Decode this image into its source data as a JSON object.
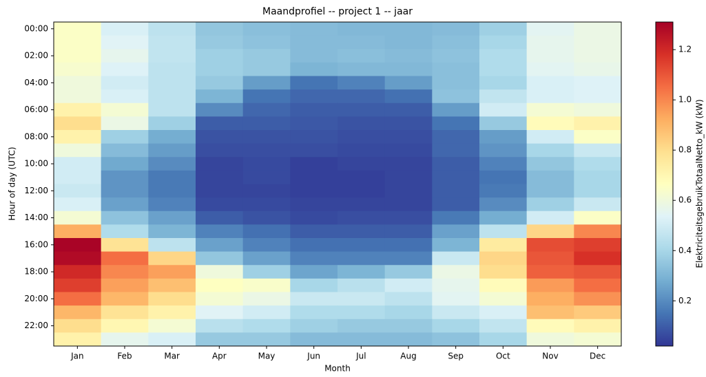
{
  "chart_data": {
    "type": "heatmap",
    "title": "Maandprofiel -- project 1 -- jaar",
    "x_label": "Month",
    "y_label": "Hour of day (UTC)",
    "colorbar_label": "ElektriciteitsgebruikTotaalNetto_kW (kW)",
    "x_categories": [
      "Jan",
      "Feb",
      "Mar",
      "Apr",
      "May",
      "Jun",
      "Jul",
      "Aug",
      "Sep",
      "Oct",
      "Nov",
      "Dec"
    ],
    "y_categories": [
      "00:00",
      null,
      "02:00",
      null,
      "04:00",
      null,
      "06:00",
      null,
      "08:00",
      null,
      "10:00",
      null,
      "12:00",
      null,
      "14:00",
      null,
      "16:00",
      null,
      "18:00",
      null,
      "20:00",
      null,
      "22:00",
      null
    ],
    "values": [
      [
        0.65,
        0.52,
        0.45,
        0.35,
        0.33,
        0.32,
        0.31,
        0.31,
        0.32,
        0.38,
        0.55,
        0.58
      ],
      [
        0.65,
        0.54,
        0.46,
        0.36,
        0.34,
        0.32,
        0.32,
        0.31,
        0.33,
        0.4,
        0.56,
        0.58
      ],
      [
        0.65,
        0.56,
        0.46,
        0.38,
        0.36,
        0.32,
        0.33,
        0.32,
        0.34,
        0.42,
        0.56,
        0.58
      ],
      [
        0.63,
        0.53,
        0.45,
        0.38,
        0.36,
        0.3,
        0.31,
        0.31,
        0.33,
        0.42,
        0.55,
        0.57
      ],
      [
        0.6,
        0.5,
        0.45,
        0.36,
        0.24,
        0.15,
        0.18,
        0.24,
        0.33,
        0.4,
        0.52,
        0.53
      ],
      [
        0.6,
        0.52,
        0.45,
        0.3,
        0.15,
        0.12,
        0.12,
        0.14,
        0.34,
        0.46,
        0.52,
        0.53
      ],
      [
        0.72,
        0.62,
        0.45,
        0.2,
        0.12,
        0.1,
        0.1,
        0.1,
        0.24,
        0.5,
        0.62,
        0.6
      ],
      [
        0.8,
        0.58,
        0.38,
        0.1,
        0.1,
        0.09,
        0.08,
        0.08,
        0.15,
        0.36,
        0.68,
        0.72
      ],
      [
        0.72,
        0.38,
        0.28,
        0.08,
        0.08,
        0.08,
        0.07,
        0.07,
        0.12,
        0.24,
        0.5,
        0.65
      ],
      [
        0.6,
        0.32,
        0.24,
        0.07,
        0.07,
        0.07,
        0.06,
        0.06,
        0.12,
        0.22,
        0.4,
        0.48
      ],
      [
        0.5,
        0.27,
        0.2,
        0.05,
        0.06,
        0.04,
        0.05,
        0.05,
        0.1,
        0.18,
        0.35,
        0.42
      ],
      [
        0.5,
        0.22,
        0.16,
        0.05,
        0.06,
        0.04,
        0.04,
        0.05,
        0.1,
        0.15,
        0.32,
        0.4
      ],
      [
        0.48,
        0.22,
        0.16,
        0.05,
        0.05,
        0.04,
        0.04,
        0.05,
        0.1,
        0.16,
        0.32,
        0.4
      ],
      [
        0.52,
        0.25,
        0.18,
        0.06,
        0.06,
        0.05,
        0.05,
        0.05,
        0.1,
        0.2,
        0.38,
        0.48
      ],
      [
        0.62,
        0.34,
        0.25,
        0.1,
        0.08,
        0.06,
        0.07,
        0.07,
        0.16,
        0.28,
        0.5,
        0.65
      ],
      [
        0.92,
        0.42,
        0.3,
        0.18,
        0.14,
        0.1,
        0.1,
        0.1,
        0.25,
        0.45,
        0.82,
        1.0
      ],
      [
        1.3,
        0.78,
        0.45,
        0.25,
        0.18,
        0.14,
        0.14,
        0.14,
        0.3,
        0.75,
        1.12,
        1.15
      ],
      [
        1.28,
        1.05,
        0.82,
        0.35,
        0.25,
        0.18,
        0.18,
        0.18,
        0.48,
        0.82,
        1.1,
        1.18
      ],
      [
        1.2,
        1.0,
        0.95,
        0.6,
        0.38,
        0.26,
        0.3,
        0.36,
        0.58,
        0.8,
        1.08,
        1.1
      ],
      [
        1.15,
        0.95,
        0.88,
        0.66,
        0.64,
        0.4,
        0.44,
        0.5,
        0.56,
        0.68,
        0.96,
        1.05
      ],
      [
        1.05,
        0.9,
        0.8,
        0.62,
        0.58,
        0.48,
        0.48,
        0.45,
        0.55,
        0.62,
        0.92,
        0.98
      ],
      [
        0.9,
        0.78,
        0.72,
        0.54,
        0.5,
        0.42,
        0.42,
        0.4,
        0.48,
        0.52,
        0.88,
        0.85
      ],
      [
        0.8,
        0.7,
        0.62,
        0.44,
        0.42,
        0.38,
        0.36,
        0.36,
        0.4,
        0.46,
        0.68,
        0.72
      ],
      [
        0.72,
        0.56,
        0.52,
        0.36,
        0.36,
        0.32,
        0.32,
        0.32,
        0.34,
        0.4,
        0.6,
        0.62
      ]
    ],
    "colors": [
      "#313695",
      "#4575b4",
      "#74add1",
      "#abd9e9",
      "#e0f3f8",
      "#ffffbf",
      "#fee090",
      "#fdae61",
      "#f46d43",
      "#d73027",
      "#a50026"
    ],
    "clim": [
      0.02,
      1.31
    ],
    "cticks": [
      0.2,
      0.4,
      0.6,
      0.8,
      {
        "value": 1,
        "label": "1.0"
      },
      1.2
    ]
  }
}
